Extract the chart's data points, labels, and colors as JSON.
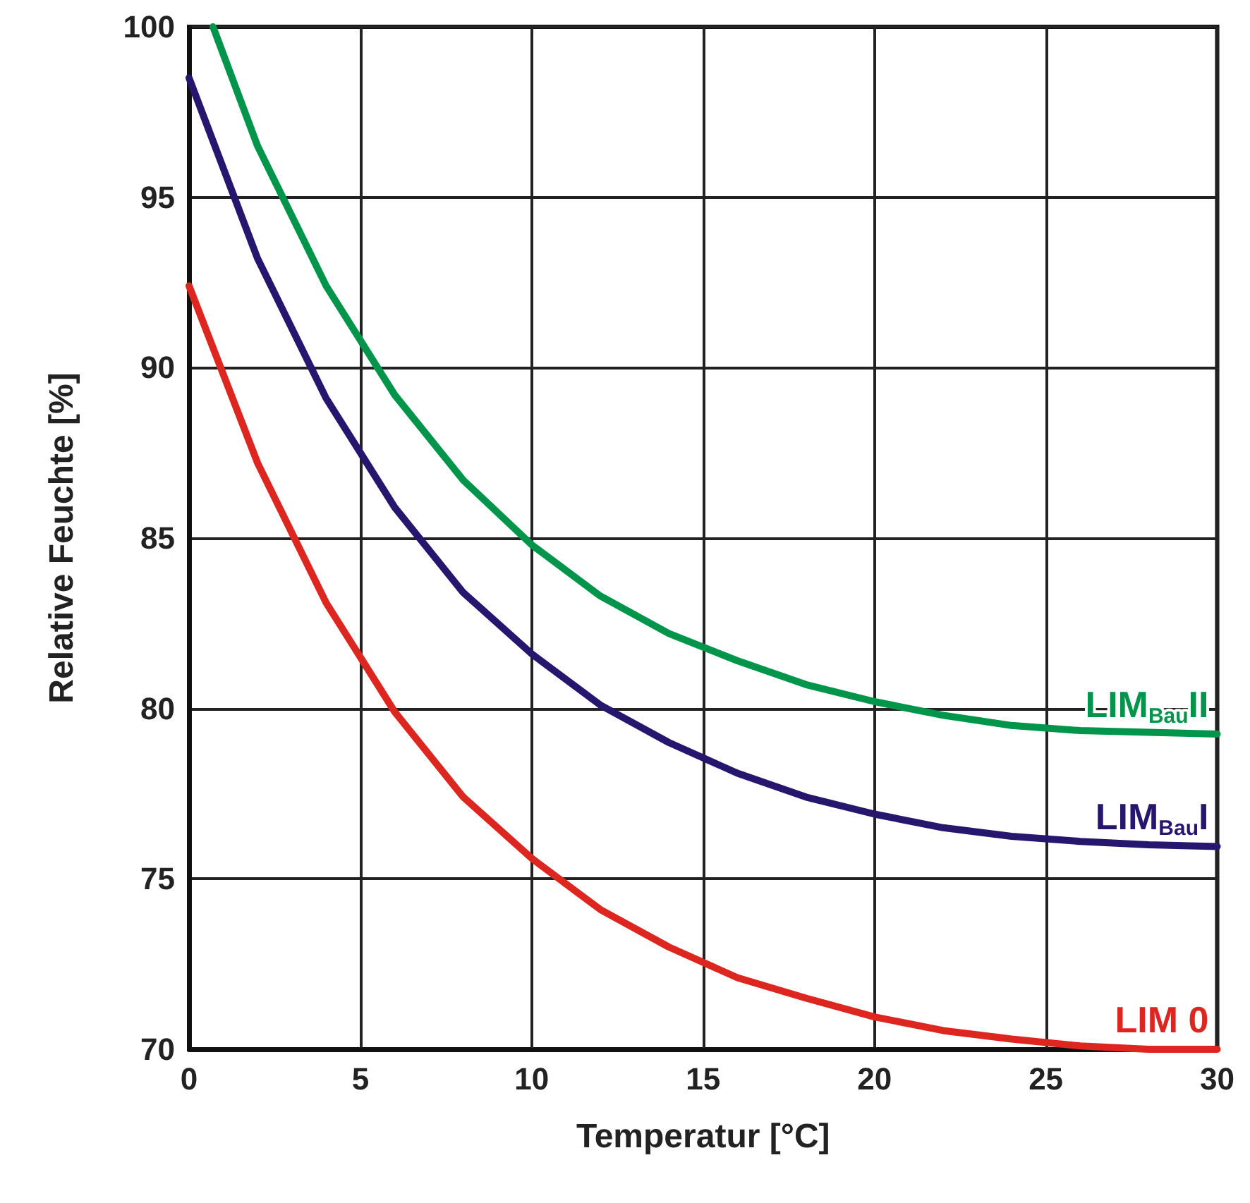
{
  "chart_data": {
    "type": "line",
    "xlabel": "Temperatur [°C]",
    "ylabel": "Relative Feuchte [%]",
    "xlim": [
      0,
      30
    ],
    "xticks": [
      0,
      5,
      10,
      15,
      20,
      25,
      30
    ],
    "ylim": [
      70,
      100
    ],
    "yticks": [
      70,
      75,
      80,
      85,
      90,
      95,
      100
    ],
    "grid": true,
    "legend": false,
    "marker": "none",
    "line_style": "solid",
    "series": [
      {
        "name": "LIM$_{Bau}$II",
        "color": "#00954a",
        "x": [
          0.7,
          2,
          4,
          6,
          8,
          10,
          12,
          14,
          16,
          18,
          20,
          22,
          24,
          26,
          28,
          30
        ],
        "values": [
          100,
          96.5,
          92.4,
          89.2,
          86.7,
          84.8,
          83.3,
          82.2,
          81.4,
          80.7,
          80.2,
          79.8,
          79.5,
          79.35,
          79.3,
          79.25
        ]
      },
      {
        "name": "LIM$_{Bau}$I",
        "color": "#27166e",
        "x": [
          0,
          2,
          4,
          6,
          8,
          10,
          12,
          14,
          16,
          18,
          20,
          22,
          24,
          26,
          28,
          30
        ],
        "values": [
          98.5,
          93.2,
          89.1,
          85.9,
          83.4,
          81.6,
          80.1,
          79.0,
          78.1,
          77.4,
          76.9,
          76.5,
          76.25,
          76.1,
          76.0,
          75.95
        ]
      },
      {
        "name": "LIM 0",
        "color": "#de2620",
        "x": [
          0,
          2,
          4,
          6,
          8,
          10,
          12,
          14,
          16,
          18,
          20,
          22,
          24,
          26,
          28,
          30
        ],
        "values": [
          92.4,
          87.2,
          83.1,
          79.9,
          77.4,
          75.6,
          74.1,
          73.0,
          72.1,
          71.5,
          70.95,
          70.55,
          70.3,
          70.1,
          70.0,
          70.0
        ]
      }
    ]
  }
}
